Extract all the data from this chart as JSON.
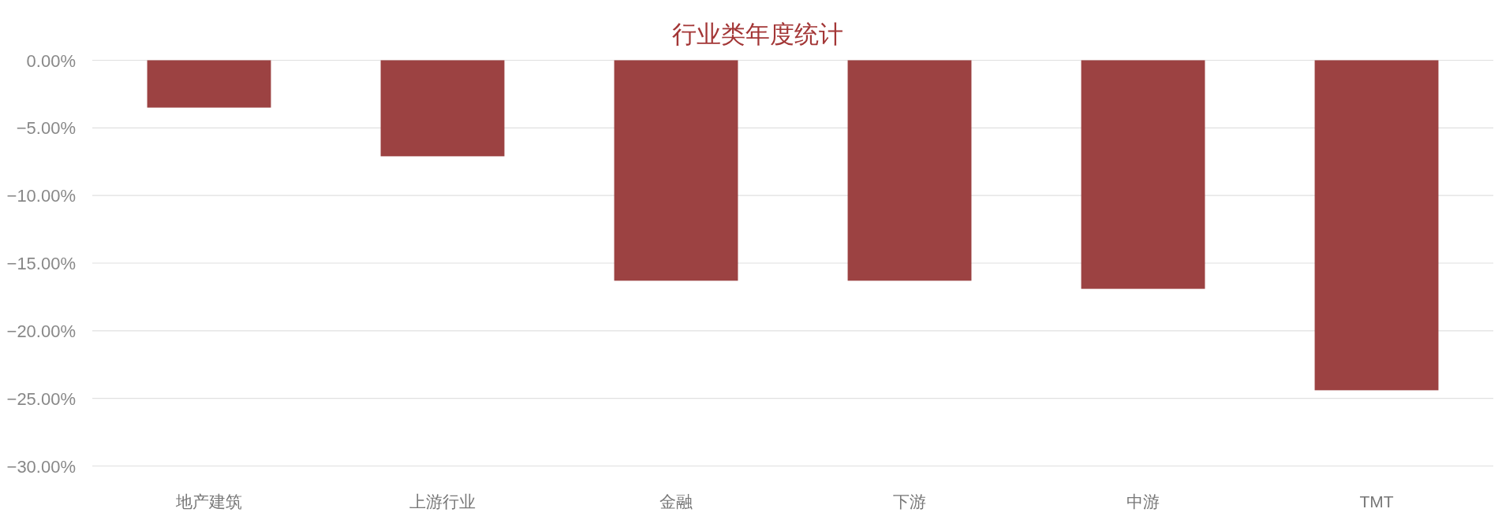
{
  "chart_data": {
    "type": "bar",
    "title": "行业类年度统计",
    "categories": [
      "地产建筑",
      "上游行业",
      "金融",
      "下游",
      "中游",
      "TMT"
    ],
    "values": [
      -3.5,
      -7.1,
      -16.3,
      -16.3,
      -16.9,
      -24.4
    ],
    "color": "#9c4242",
    "ylim": [
      -30,
      0
    ],
    "yticks": [
      {
        "value": 0,
        "label": "0.00%"
      },
      {
        "value": -5,
        "label": "−5.00%"
      },
      {
        "value": -10,
        "label": "−10.00%"
      },
      {
        "value": -15,
        "label": "−15.00%"
      },
      {
        "value": -20,
        "label": "−20.00%"
      },
      {
        "value": -25,
        "label": "−25.00%"
      },
      {
        "value": -30,
        "label": "−30.00%"
      }
    ],
    "grid": "y"
  }
}
